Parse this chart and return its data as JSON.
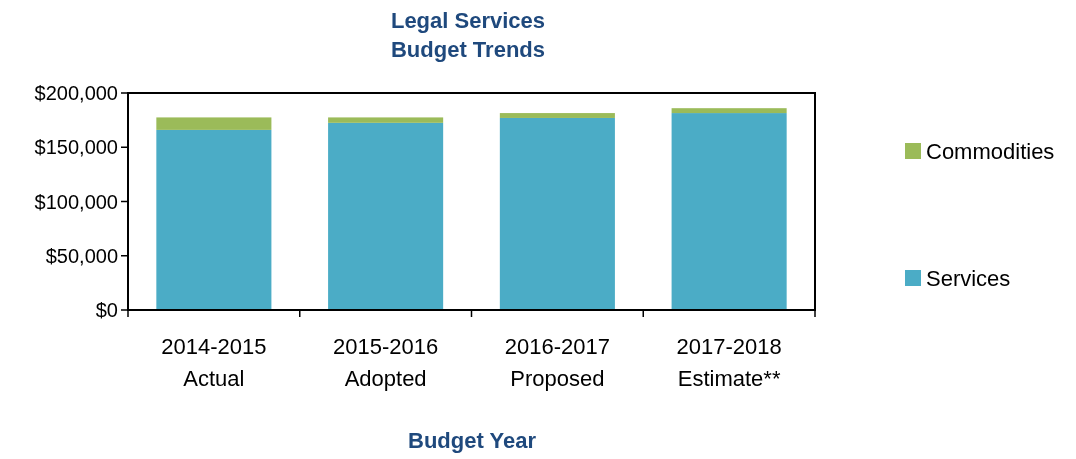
{
  "chart_data": {
    "type": "bar",
    "stacked": true,
    "title": "Legal Services\nBudget Trends",
    "xlabel": "Budget Year",
    "categories": [
      "2014-2015\nActual",
      "2015-2016\nAdopted",
      "2016-2017\nProposed",
      "2017-2018\nEstimate**"
    ],
    "series": [
      {
        "name": "Services",
        "color": "#4bacc6",
        "values": [
          166000,
          172500,
          177000,
          181500
        ]
      },
      {
        "name": "Commodities",
        "color": "#9bbb59",
        "values": [
          11500,
          5000,
          4500,
          4500
        ]
      }
    ],
    "ylim": [
      0,
      200000
    ],
    "yticks": [
      {
        "value": 0,
        "label": "$0"
      },
      {
        "value": 50000,
        "label": "$50,000"
      },
      {
        "value": 100000,
        "label": "$100,000"
      },
      {
        "value": 150000,
        "label": "$150,000"
      },
      {
        "value": 200000,
        "label": "$200,000"
      }
    ],
    "legend": "right",
    "grid": false
  }
}
